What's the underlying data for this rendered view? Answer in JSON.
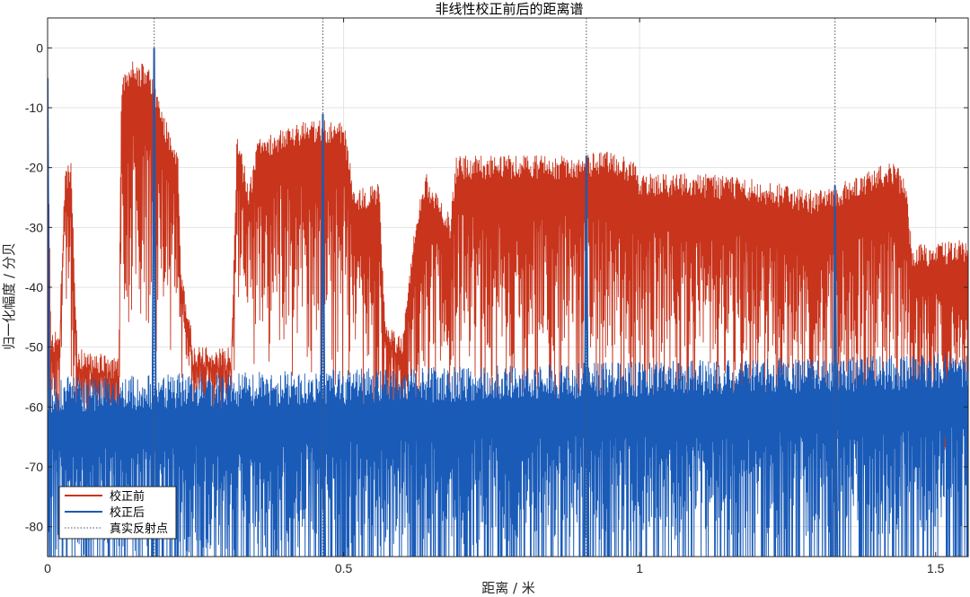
{
  "chart_data": {
    "type": "line",
    "title": "非线性校正前后的距离谱",
    "xlabel": "距离 / 米",
    "ylabel": "归一化幅度 / 分贝",
    "xlim": [
      0,
      1.555
    ],
    "ylim": [
      -85,
      5
    ],
    "xticks": [
      0,
      0.5,
      1,
      1.5
    ],
    "xtick_labels": [
      "0",
      "0.5",
      "1",
      "1.5"
    ],
    "yticks": [
      0,
      -10,
      -20,
      -30,
      -40,
      -50,
      -60,
      -70,
      -80
    ],
    "ytick_labels": [
      "0",
      "-10",
      "-20",
      "-30",
      "-40",
      "-50",
      "-60",
      "-70",
      "-80"
    ],
    "grid": true,
    "legend_position": "bottom-left",
    "series": [
      {
        "name": "校正前",
        "color": "#C8341C",
        "style": "solid",
        "envelope_upper": [
          [
            0.0,
            -10
          ],
          [
            0.006,
            -48
          ],
          [
            0.02,
            -46
          ],
          [
            0.03,
            -20
          ],
          [
            0.04,
            -19
          ],
          [
            0.05,
            -50
          ],
          [
            0.12,
            -52
          ],
          [
            0.125,
            -4
          ],
          [
            0.14,
            -2
          ],
          [
            0.17,
            -3
          ],
          [
            0.2,
            -12
          ],
          [
            0.22,
            -17
          ],
          [
            0.225,
            -38
          ],
          [
            0.24,
            -43
          ],
          [
            0.245,
            -50
          ],
          [
            0.31,
            -50
          ],
          [
            0.32,
            -14
          ],
          [
            0.34,
            -23
          ],
          [
            0.355,
            -15
          ],
          [
            0.4,
            -13
          ],
          [
            0.45,
            -12
          ],
          [
            0.5,
            -12
          ],
          [
            0.52,
            -24
          ],
          [
            0.56,
            -22
          ],
          [
            0.57,
            -46
          ],
          [
            0.6,
            -48
          ],
          [
            0.62,
            -29
          ],
          [
            0.64,
            -21
          ],
          [
            0.68,
            -28
          ],
          [
            0.69,
            -18
          ],
          [
            0.75,
            -18
          ],
          [
            0.8,
            -18
          ],
          [
            0.85,
            -18
          ],
          [
            0.9,
            -18
          ],
          [
            0.95,
            -17
          ],
          [
            0.99,
            -19
          ],
          [
            1.0,
            -21
          ],
          [
            1.1,
            -21
          ],
          [
            1.2,
            -22
          ],
          [
            1.3,
            -24
          ],
          [
            1.35,
            -22
          ],
          [
            1.4,
            -20
          ],
          [
            1.43,
            -19
          ],
          [
            1.45,
            -22
          ],
          [
            1.46,
            -33
          ],
          [
            1.555,
            -32
          ]
        ],
        "envelope_lower": [
          [
            0.0,
            -60
          ],
          [
            0.02,
            -60
          ],
          [
            0.03,
            -30
          ],
          [
            0.04,
            -50
          ],
          [
            0.05,
            -60
          ],
          [
            0.12,
            -62
          ],
          [
            0.125,
            -42
          ],
          [
            0.17,
            -40
          ],
          [
            0.22,
            -43
          ],
          [
            0.245,
            -58
          ],
          [
            0.31,
            -60
          ],
          [
            0.32,
            -42
          ],
          [
            0.4,
            -45
          ],
          [
            0.5,
            -47
          ],
          [
            0.52,
            -52
          ],
          [
            0.56,
            -55
          ],
          [
            0.57,
            -57
          ],
          [
            0.6,
            -60
          ],
          [
            0.62,
            -55
          ],
          [
            0.69,
            -50
          ],
          [
            0.8,
            -52
          ],
          [
            0.9,
            -50
          ],
          [
            1.0,
            -52
          ],
          [
            1.2,
            -52
          ],
          [
            1.35,
            -55
          ],
          [
            1.45,
            -55
          ],
          [
            1.46,
            -58
          ],
          [
            1.555,
            -58
          ]
        ]
      },
      {
        "name": "校正后",
        "color": "#1A5BB8",
        "style": "solid",
        "noise_floor_dB": -65,
        "peaks": [
          {
            "x": 0.0,
            "y": -5
          },
          {
            "x": 0.18,
            "y": 0
          },
          {
            "x": 0.465,
            "y": -11
          },
          {
            "x": 0.91,
            "y": -18
          },
          {
            "x": 1.33,
            "y": -23
          }
        ]
      },
      {
        "name": "真实反射点",
        "color": "#555555",
        "style": "dotted",
        "x": [
          0.18,
          0.465,
          0.91,
          1.33
        ]
      }
    ]
  }
}
